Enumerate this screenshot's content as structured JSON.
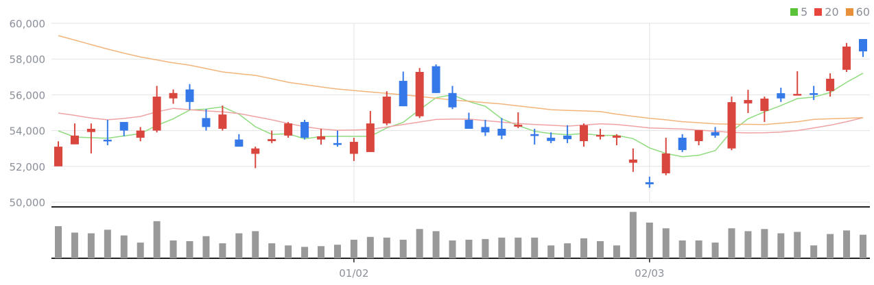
{
  "chart_data": {
    "type": "candlestick",
    "title": "",
    "up_color": "#d9463e",
    "down_color": "#3579e8",
    "volume_color": "#999999",
    "ylim": [
      50000,
      60000
    ],
    "yticks": [
      50000,
      52000,
      54000,
      56000,
      58000,
      60000
    ],
    "ytick_labels": [
      "50,000",
      "52,000",
      "54,000",
      "56,000",
      "58,000",
      "60,000"
    ],
    "xtick_labels": [
      {
        "index": 18,
        "label": "01/02"
      },
      {
        "index": 36,
        "label": "02/03"
      }
    ],
    "legend": {
      "placement": "top-right",
      "items": [
        {
          "label": "5",
          "color": "#5cc23a",
          "line_color": "#8fdc7e"
        },
        {
          "label": "20",
          "color": "#e8453c",
          "line_color": "#f0a2a2"
        },
        {
          "label": "60",
          "color": "#e8903a",
          "line_color": "#f3b47a"
        }
      ]
    },
    "candles": [
      [
        52000,
        53400,
        52000,
        53100
      ],
      [
        53230,
        54400,
        53230,
        53720
      ],
      [
        53920,
        54400,
        52720,
        54100
      ],
      [
        53490,
        54600,
        53180,
        53400
      ],
      [
        54480,
        54480,
        53680,
        54000
      ],
      [
        53600,
        54200,
        53400,
        54000
      ],
      [
        54000,
        56500,
        53900,
        55900
      ],
      [
        55800,
        56300,
        55500,
        56100
      ],
      [
        56300,
        56600,
        55170,
        55600
      ],
      [
        54700,
        55200,
        54000,
        54200
      ],
      [
        54100,
        55400,
        54000,
        54900
      ],
      [
        53500,
        53800,
        53100,
        53100
      ],
      [
        52700,
        53100,
        51900,
        53000
      ],
      [
        53410,
        54000,
        53300,
        53520
      ],
      [
        53720,
        54480,
        53600,
        54400
      ],
      [
        54480,
        54600,
        53500,
        53600
      ],
      [
        53500,
        54100,
        53220,
        53680
      ],
      [
        53300,
        54000,
        53100,
        53200
      ],
      [
        52700,
        53600,
        52300,
        53370
      ],
      [
        52800,
        55100,
        52800,
        54400
      ],
      [
        54400,
        56200,
        54300,
        55900
      ],
      [
        56780,
        57300,
        55360,
        55360
      ],
      [
        54800,
        57500,
        54700,
        57280
      ],
      [
        57600,
        57700,
        56100,
        56100
      ],
      [
        56100,
        56500,
        55200,
        55300
      ],
      [
        54600,
        55000,
        54100,
        54100
      ],
      [
        54200,
        54600,
        53700,
        53900
      ],
      [
        54100,
        54700,
        53520,
        53720
      ],
      [
        54220,
        55020,
        54140,
        54330
      ],
      [
        53800,
        54100,
        53220,
        53700
      ],
      [
        53600,
        53900,
        53300,
        53420
      ],
      [
        53720,
        54300,
        53300,
        53520
      ],
      [
        53410,
        54400,
        53100,
        54300
      ],
      [
        53700,
        54100,
        53500,
        53760
      ],
      [
        53600,
        53800,
        53180,
        53720
      ],
      [
        52200,
        53000,
        51690,
        52380
      ],
      [
        51110,
        51420,
        50800,
        51000
      ],
      [
        51610,
        53600,
        51500,
        52720
      ],
      [
        53600,
        53800,
        52800,
        52910
      ],
      [
        53410,
        54020,
        53180,
        54020
      ],
      [
        53910,
        54200,
        53600,
        53720
      ],
      [
        53000,
        55900,
        52900,
        55590
      ],
      [
        55520,
        56280,
        54980,
        55710
      ],
      [
        55100,
        55900,
        54480,
        55790
      ],
      [
        56090,
        56400,
        55600,
        55800
      ],
      [
        55980,
        57320,
        55980,
        56050
      ],
      [
        56090,
        56500,
        55710,
        56000
      ],
      [
        56210,
        57200,
        55900,
        56900
      ],
      [
        57400,
        58900,
        57280,
        58700
      ],
      [
        59120,
        59120,
        58120,
        58430
      ]
    ],
    "candle_format": [
      "open",
      "high",
      "low",
      "close"
    ],
    "volume_relative": [
      45,
      36,
      35,
      40,
      32,
      22,
      52,
      25,
      24,
      31,
      21,
      35,
      38,
      21,
      18,
      16,
      17,
      19,
      26,
      30,
      29,
      26,
      41,
      38,
      25,
      26,
      27,
      29,
      29,
      29,
      18,
      21,
      28,
      24,
      18,
      65,
      50,
      42,
      25,
      25,
      22,
      42,
      38,
      41,
      35,
      37,
      18,
      34,
      39,
      33
    ],
    "ma": {
      "5": [
        53985,
        53640,
        53600,
        53575,
        53700,
        53830,
        54290,
        54660,
        55150,
        55200,
        55330,
        54920,
        54215,
        53790,
        53820,
        53540,
        53670,
        53680,
        53680,
        53680,
        54150,
        54460,
        55170,
        55840,
        56000,
        55620,
        55360,
        54660,
        54280,
        53960,
        53830,
        53770,
        53830,
        53730,
        53730,
        53550,
        53030,
        52720,
        52540,
        52620,
        52880,
        53960,
        54660,
        55050,
        55400,
        55790,
        55870,
        56130,
        56700,
        57210
      ],
      "20": [
        54980,
        54850,
        54700,
        54600,
        54680,
        54790,
        55050,
        55240,
        55170,
        55100,
        55050,
        54950,
        54780,
        54600,
        54400,
        54215,
        54090,
        54020,
        54030,
        54060,
        54200,
        54340,
        54480,
        54620,
        54640,
        54640,
        54560,
        54470,
        54400,
        54340,
        54300,
        54250,
        54310,
        54380,
        54340,
        54250,
        54150,
        54120,
        54090,
        54030,
        53960,
        53900,
        53870,
        53880,
        53920,
        54000,
        54150,
        54300,
        54500,
        54720
      ],
      "60": [
        59310,
        59060,
        58810,
        58560,
        58330,
        58120,
        57950,
        57790,
        57660,
        57470,
        57280,
        57180,
        57090,
        56900,
        56700,
        56570,
        56440,
        56320,
        56240,
        56160,
        56080,
        56000,
        55910,
        55810,
        55710,
        55640,
        55560,
        55490,
        55380,
        55280,
        55170,
        55130,
        55100,
        55060,
        54920,
        54800,
        54690,
        54600,
        54500,
        54440,
        54380,
        54360,
        54350,
        54340,
        54410,
        54490,
        54630,
        54660,
        54690,
        54720
      ]
    }
  }
}
